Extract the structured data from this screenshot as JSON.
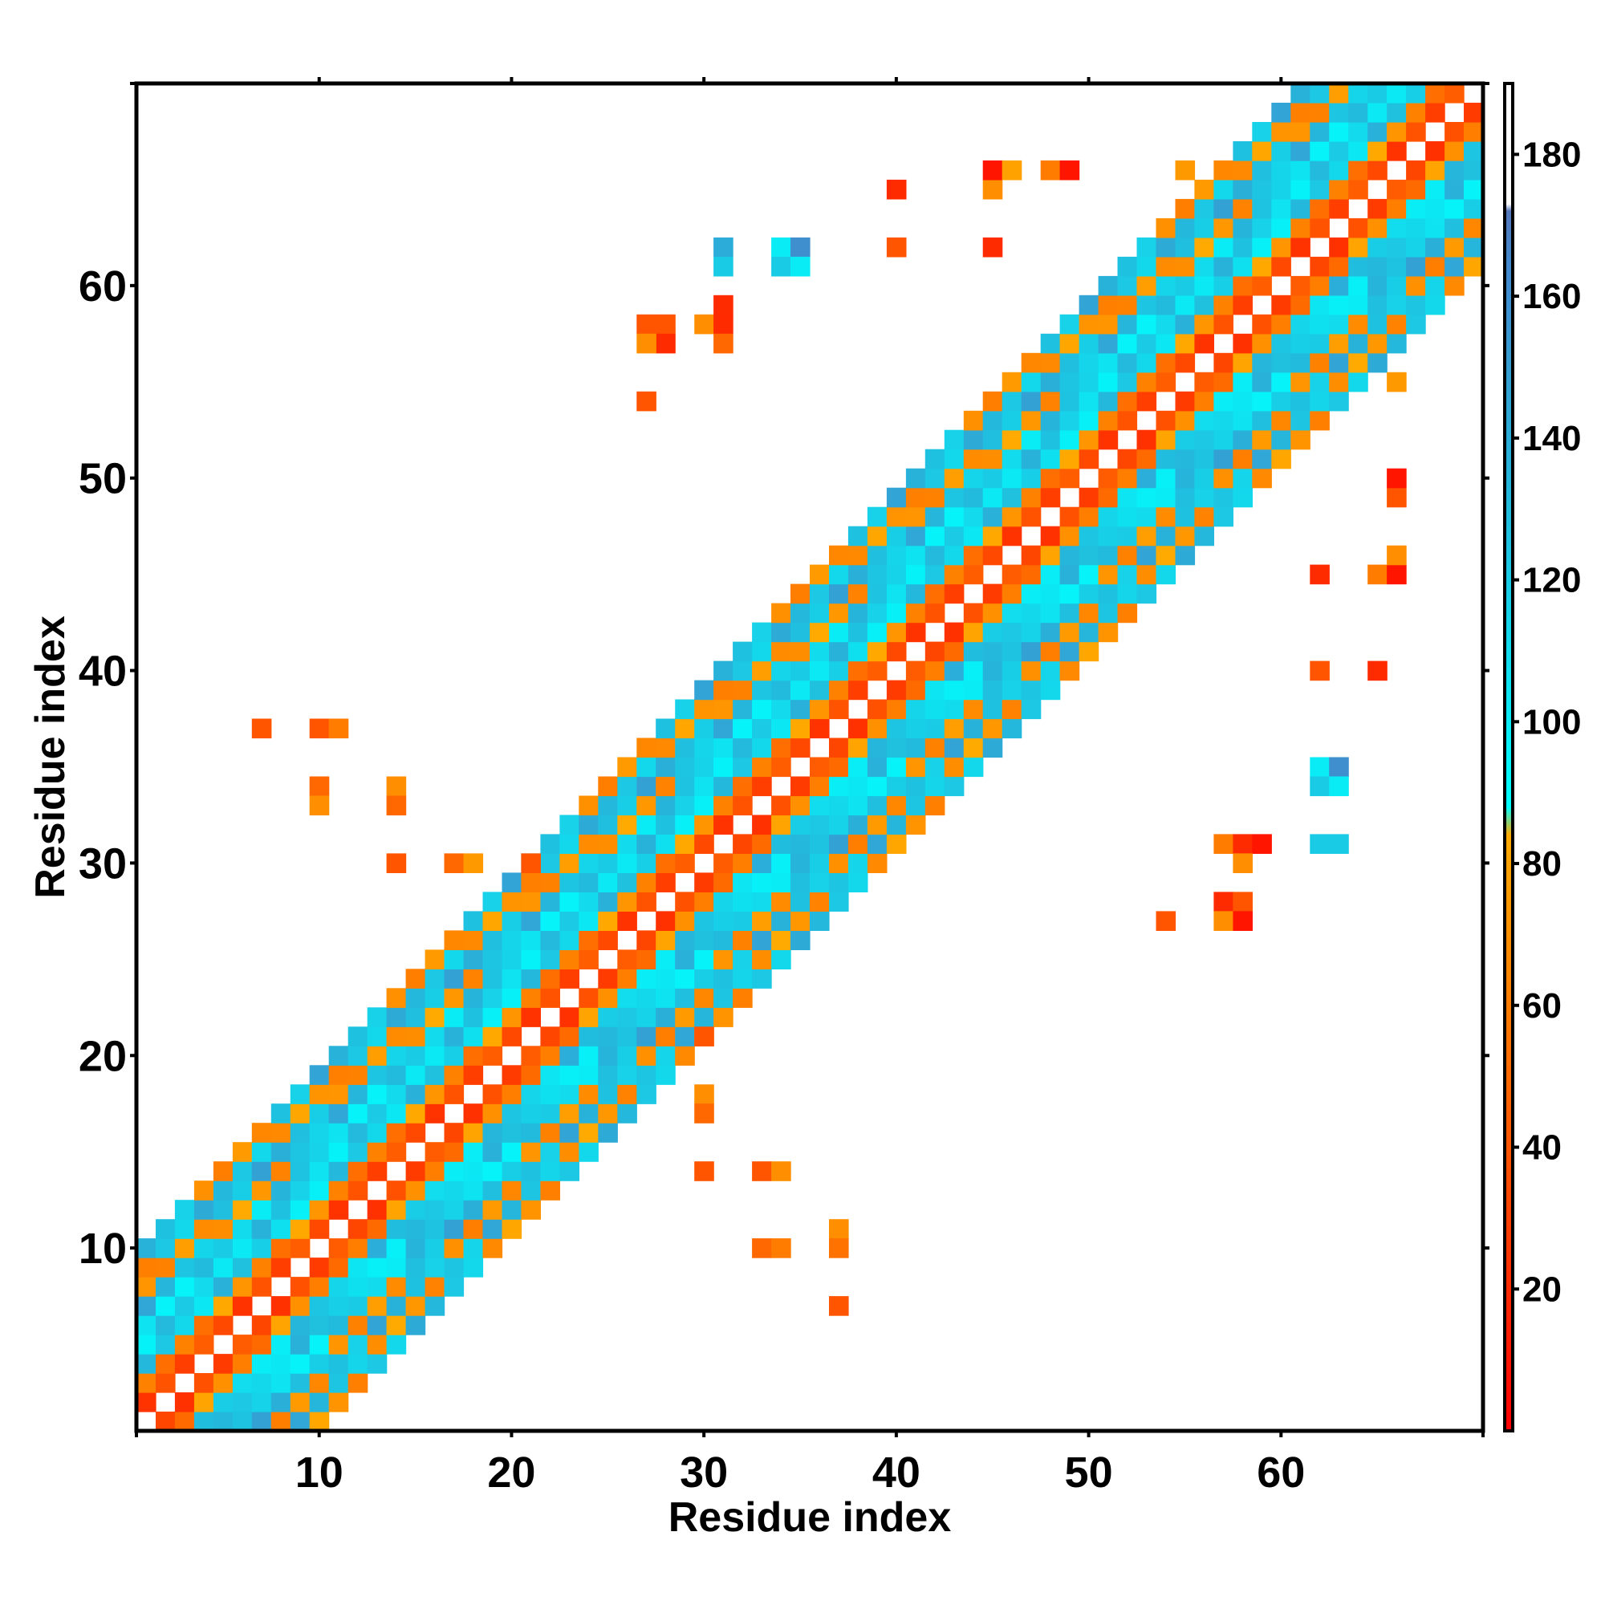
{
  "chart_data": {
    "type": "heatmap",
    "title": "",
    "xlabel": "Residue index",
    "ylabel": "Residue index",
    "xlim": [
      0.5,
      70.5
    ],
    "ylim": [
      0.5,
      70.5
    ],
    "x_ticks": [
      10,
      20,
      30,
      40,
      50,
      60
    ],
    "y_ticks": [
      10,
      20,
      30,
      40,
      50,
      60
    ],
    "grid": false,
    "colorbar": {
      "range": [
        0,
        190
      ],
      "ticks": [
        20,
        40,
        60,
        80,
        100,
        120,
        140,
        160,
        180
      ],
      "stops": [
        {
          "value": 0,
          "color": "#ff0000"
        },
        {
          "value": 40,
          "color": "#ff5500"
        },
        {
          "value": 84,
          "color": "#ffaa00"
        },
        {
          "value": 88,
          "color": "#00ffff"
        },
        {
          "value": 130,
          "color": "#22bbdd"
        },
        {
          "value": 165,
          "color": "#4488cc"
        },
        {
          "value": 172,
          "color": "#5577bb"
        },
        {
          "value": 173,
          "color": "#ffffff"
        },
        {
          "value": 190,
          "color": "#ffffff"
        }
      ]
    },
    "band": {
      "start_index": 1,
      "end_index": 70,
      "width": 9
    },
    "off_diagonal_cells": [
      [
        27,
        58,
        40
      ],
      [
        28,
        58,
        40
      ],
      [
        28,
        57,
        20
      ],
      [
        27,
        57,
        70
      ],
      [
        30,
        58,
        70
      ],
      [
        31,
        58,
        20
      ],
      [
        31,
        59,
        20
      ],
      [
        31,
        57,
        50
      ],
      [
        27,
        54,
        40
      ],
      [
        31,
        62,
        140
      ],
      [
        31,
        61,
        120
      ],
      [
        34,
        62,
        100
      ],
      [
        35,
        62,
        160
      ],
      [
        34,
        61,
        120
      ],
      [
        35,
        61,
        100
      ],
      [
        40,
        62,
        40
      ],
      [
        45,
        62,
        20
      ],
      [
        40,
        65,
        20
      ],
      [
        45,
        65,
        70
      ],
      [
        45,
        66,
        10
      ],
      [
        46,
        66,
        80
      ],
      [
        48,
        66,
        60
      ],
      [
        49,
        66,
        10
      ],
      [
        55,
        66,
        75
      ],
      [
        7,
        37,
        40
      ],
      [
        10,
        37,
        40
      ],
      [
        11,
        37,
        60
      ],
      [
        10,
        34,
        50
      ],
      [
        10,
        33,
        70
      ],
      [
        14,
        34,
        70
      ],
      [
        14,
        33,
        50
      ],
      [
        14,
        30,
        40
      ],
      [
        17,
        30,
        50
      ],
      [
        18,
        30,
        75
      ],
      [
        21,
        30,
        40
      ],
      [
        30,
        21,
        40
      ],
      [
        30,
        18,
        70
      ],
      [
        30,
        17,
        50
      ],
      [
        30,
        14,
        40
      ],
      [
        33,
        14,
        40
      ],
      [
        34,
        14,
        70
      ],
      [
        33,
        10,
        50
      ],
      [
        34,
        10,
        60
      ],
      [
        37,
        11,
        70
      ],
      [
        37,
        10,
        55
      ],
      [
        37,
        7,
        40
      ],
      [
        62,
        35,
        100
      ],
      [
        63,
        35,
        160
      ],
      [
        62,
        34,
        120
      ],
      [
        63,
        34,
        100
      ],
      [
        62,
        31,
        120
      ],
      [
        63,
        31,
        120
      ],
      [
        57,
        31,
        60
      ],
      [
        58,
        31,
        20
      ],
      [
        59,
        31,
        10
      ],
      [
        58,
        30,
        70
      ],
      [
        57,
        28,
        20
      ],
      [
        58,
        28,
        40
      ],
      [
        54,
        27,
        40
      ],
      [
        57,
        27,
        70
      ],
      [
        58,
        27,
        10
      ],
      [
        62,
        40,
        40
      ],
      [
        65,
        40,
        20
      ],
      [
        62,
        45,
        20
      ],
      [
        65,
        45,
        60
      ],
      [
        66,
        45,
        10
      ],
      [
        66,
        46,
        70
      ],
      [
        66,
        49,
        40
      ],
      [
        66,
        50,
        10
      ],
      [
        66,
        55,
        75
      ]
    ]
  }
}
